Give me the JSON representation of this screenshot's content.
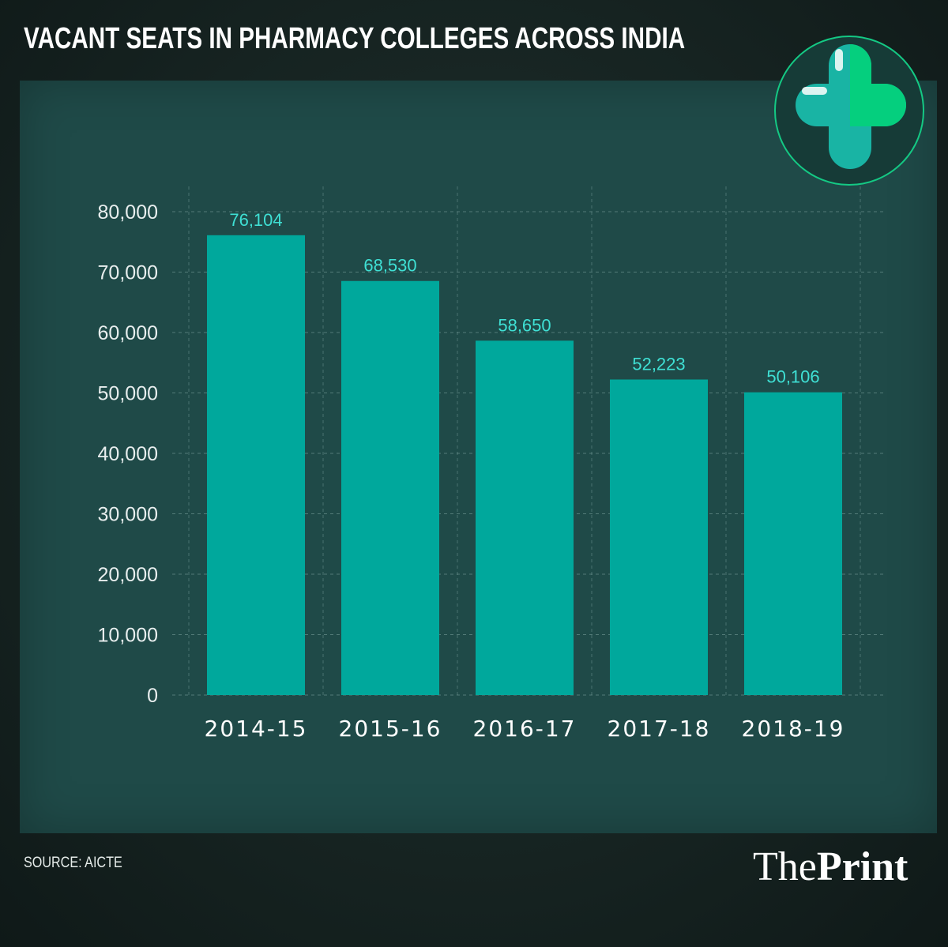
{
  "title": "VACANT SEATS IN PHARMACY COLLEGES ACROSS INDIA",
  "source": "SOURCE: AICTE",
  "brand": {
    "part1": "The",
    "part2": "Print"
  },
  "colors": {
    "bar": "#00a89c",
    "value_label": "#3fe0d4",
    "panel": "#1f4a48",
    "logo_left": "#19b4a4",
    "logo_right": "#05cf7e"
  },
  "logo_icon": "medical-cross-icon",
  "chart_data": {
    "type": "bar",
    "title": "VACANT SEATS IN PHARMACY COLLEGES ACROSS INDIA",
    "categories": [
      "2014-15",
      "2015-16",
      "2016-17",
      "2017-18",
      "2018-19"
    ],
    "values": [
      76104,
      68530,
      58650,
      52223,
      50106
    ],
    "value_labels": [
      "76,104",
      "68,530",
      "58,650",
      "52,223",
      "50,106"
    ],
    "ylim": [
      0,
      80000
    ],
    "yticks": [
      0,
      10000,
      20000,
      30000,
      40000,
      50000,
      60000,
      70000,
      80000
    ],
    "ytick_labels": [
      "0",
      "10,000",
      "20,000",
      "30,000",
      "40,000",
      "50,000",
      "60,000",
      "70,000",
      "80,000"
    ],
    "xlabel": "",
    "ylabel": "",
    "grid": true
  }
}
